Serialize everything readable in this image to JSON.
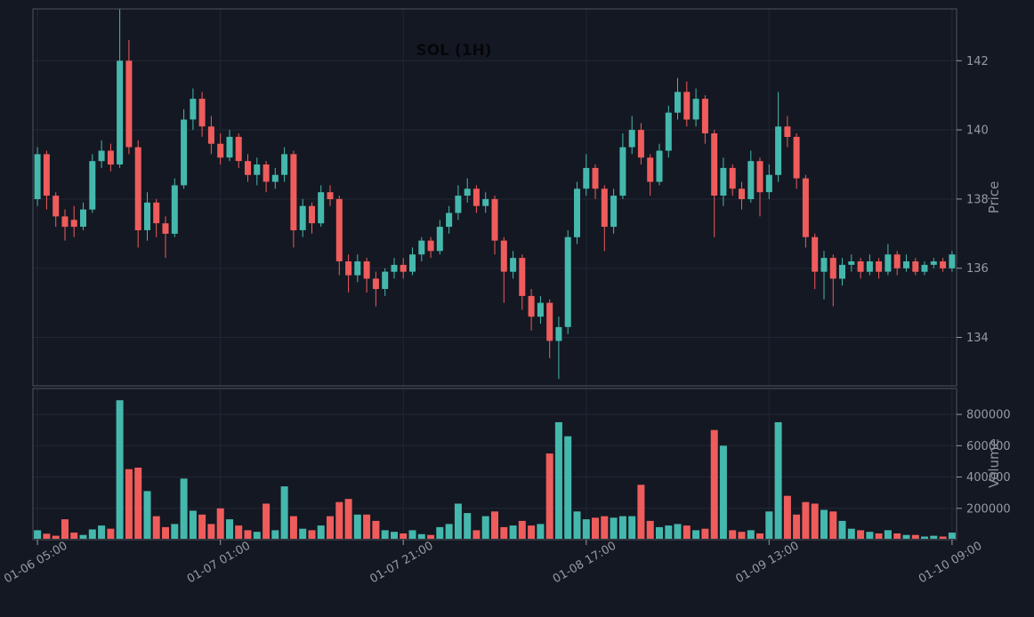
{
  "colors": {
    "background": "#141822",
    "up": "#45b8ad",
    "down": "#ef5c5c",
    "grid": "#232735",
    "panel_border": "#4d525c",
    "tick_text": "#969aa3",
    "axis_label_text": "#8d929c",
    "title_text": "#06070a"
  },
  "chart_data": {
    "type": "candlestick",
    "title": "SOL (1H)",
    "legend_position": "none",
    "grid": true,
    "price_axis": {
      "label": "Price",
      "ticks": [
        134,
        136,
        138,
        140,
        142
      ],
      "range": [
        132.6,
        143.5
      ]
    },
    "volume_axis": {
      "label": "Volume",
      "ticks": [
        200000,
        400000,
        600000,
        800000
      ],
      "range": [
        0,
        965000
      ]
    },
    "x_axis": {
      "tick_indices": [
        0,
        20,
        40,
        60,
        80,
        100
      ],
      "tick_labels": [
        "01-06 05:00",
        "01-07 01:00",
        "01-07 21:00",
        "01-08 17:00",
        "01-09 13:00",
        "01-10 09:00"
      ]
    },
    "candles_format": [
      "open",
      "high",
      "low",
      "close",
      "volume"
    ],
    "candles": [
      [
        138.0,
        139.5,
        137.8,
        139.3,
        60000
      ],
      [
        139.3,
        139.4,
        137.7,
        138.1,
        38000
      ],
      [
        138.1,
        138.2,
        137.2,
        137.5,
        25000
      ],
      [
        137.5,
        137.7,
        136.8,
        137.2,
        130000
      ],
      [
        137.4,
        137.8,
        136.9,
        137.2,
        45000
      ],
      [
        137.2,
        137.9,
        137.1,
        137.7,
        30000
      ],
      [
        137.7,
        139.3,
        137.6,
        139.1,
        65000
      ],
      [
        139.1,
        139.7,
        138.9,
        139.4,
        90000
      ],
      [
        139.4,
        139.6,
        138.8,
        139.0,
        70000
      ],
      [
        139.0,
        143.5,
        138.9,
        142.0,
        890000
      ],
      [
        142.0,
        142.6,
        139.3,
        139.5,
        450000
      ],
      [
        139.5,
        139.7,
        136.6,
        137.1,
        460000
      ],
      [
        137.1,
        138.2,
        136.8,
        137.9,
        310000
      ],
      [
        137.9,
        138.0,
        136.9,
        137.3,
        150000
      ],
      [
        137.3,
        137.5,
        136.3,
        137.0,
        80000
      ],
      [
        137.0,
        138.6,
        136.9,
        138.4,
        100000
      ],
      [
        138.4,
        140.6,
        138.3,
        140.3,
        390000
      ],
      [
        140.3,
        141.2,
        140.0,
        140.9,
        185000
      ],
      [
        140.9,
        141.1,
        139.8,
        140.1,
        160000
      ],
      [
        140.1,
        140.4,
        139.3,
        139.6,
        100000
      ],
      [
        139.6,
        139.9,
        139.0,
        139.2,
        200000
      ],
      [
        139.2,
        140.0,
        139.1,
        139.8,
        130000
      ],
      [
        139.8,
        139.9,
        138.9,
        139.1,
        90000
      ],
      [
        139.1,
        139.3,
        138.5,
        138.7,
        60000
      ],
      [
        138.7,
        139.2,
        138.4,
        139.0,
        50000
      ],
      [
        139.0,
        139.1,
        138.2,
        138.5,
        230000
      ],
      [
        138.5,
        138.9,
        138.3,
        138.7,
        60000
      ],
      [
        138.7,
        139.5,
        138.5,
        139.3,
        340000
      ],
      [
        139.3,
        139.4,
        136.6,
        137.1,
        150000
      ],
      [
        137.1,
        138.0,
        136.9,
        137.8,
        70000
      ],
      [
        137.8,
        137.9,
        137.0,
        137.3,
        60000
      ],
      [
        137.3,
        138.4,
        137.2,
        138.2,
        90000
      ],
      [
        138.2,
        138.4,
        137.8,
        138.0,
        150000
      ],
      [
        138.0,
        138.1,
        135.8,
        136.2,
        240000
      ],
      [
        136.2,
        136.4,
        135.3,
        135.8,
        260000
      ],
      [
        135.8,
        136.4,
        135.6,
        136.2,
        160000
      ],
      [
        136.2,
        136.3,
        135.3,
        135.7,
        160000
      ],
      [
        135.7,
        135.9,
        134.9,
        135.4,
        120000
      ],
      [
        135.4,
        136.0,
        135.2,
        135.9,
        60000
      ],
      [
        135.9,
        136.3,
        135.7,
        136.1,
        50000
      ],
      [
        136.1,
        136.3,
        135.7,
        135.9,
        40000
      ],
      [
        135.9,
        136.6,
        135.8,
        136.4,
        60000
      ],
      [
        136.4,
        136.9,
        136.2,
        136.8,
        35000
      ],
      [
        136.8,
        136.9,
        136.3,
        136.5,
        30000
      ],
      [
        136.5,
        137.4,
        136.4,
        137.2,
        80000
      ],
      [
        137.2,
        137.8,
        137.0,
        137.6,
        100000
      ],
      [
        137.6,
        138.4,
        137.4,
        138.1,
        230000
      ],
      [
        138.1,
        138.6,
        137.9,
        138.3,
        170000
      ],
      [
        138.3,
        138.4,
        137.6,
        137.8,
        60000
      ],
      [
        137.8,
        138.2,
        137.6,
        138.0,
        150000
      ],
      [
        138.0,
        138.1,
        136.4,
        136.8,
        180000
      ],
      [
        136.8,
        136.9,
        135.0,
        135.9,
        80000
      ],
      [
        135.9,
        136.5,
        135.7,
        136.3,
        90000
      ],
      [
        136.3,
        136.4,
        134.8,
        135.2,
        120000
      ],
      [
        135.2,
        135.4,
        134.2,
        134.6,
        90000
      ],
      [
        134.6,
        135.2,
        134.4,
        135.0,
        100000
      ],
      [
        135.0,
        135.1,
        133.4,
        133.9,
        550000
      ],
      [
        133.9,
        134.6,
        132.8,
        134.3,
        750000
      ],
      [
        134.3,
        137.1,
        134.1,
        136.9,
        660000
      ],
      [
        136.9,
        138.5,
        136.7,
        138.3,
        180000
      ],
      [
        138.3,
        139.3,
        138.1,
        138.9,
        130000
      ],
      [
        138.9,
        139.0,
        138.0,
        138.3,
        140000
      ],
      [
        138.3,
        138.4,
        136.5,
        137.2,
        150000
      ],
      [
        137.2,
        138.3,
        137.0,
        138.1,
        140000
      ],
      [
        138.1,
        139.9,
        138.0,
        139.5,
        150000
      ],
      [
        139.5,
        140.4,
        139.3,
        140.0,
        150000
      ],
      [
        140.0,
        140.2,
        139.0,
        139.2,
        350000
      ],
      [
        139.2,
        139.3,
        138.1,
        138.5,
        120000
      ],
      [
        138.5,
        139.6,
        138.4,
        139.4,
        80000
      ],
      [
        139.4,
        140.7,
        139.2,
        140.5,
        90000
      ],
      [
        140.5,
        141.5,
        140.3,
        141.1,
        100000
      ],
      [
        141.1,
        141.4,
        140.1,
        140.3,
        90000
      ],
      [
        140.3,
        141.2,
        140.1,
        140.9,
        60000
      ],
      [
        140.9,
        141.0,
        139.6,
        139.9,
        70000
      ],
      [
        139.9,
        140.0,
        136.9,
        138.1,
        700000
      ],
      [
        138.1,
        139.2,
        137.8,
        138.9,
        600000
      ],
      [
        138.9,
        139.0,
        138.1,
        138.3,
        60000
      ],
      [
        138.3,
        138.5,
        137.7,
        138.0,
        50000
      ],
      [
        138.0,
        139.4,
        137.9,
        139.1,
        60000
      ],
      [
        139.1,
        139.2,
        137.5,
        138.2,
        40000
      ],
      [
        138.2,
        139.0,
        138.0,
        138.7,
        180000
      ],
      [
        138.7,
        141.1,
        138.5,
        140.1,
        750000
      ],
      [
        140.1,
        140.4,
        139.5,
        139.8,
        280000
      ],
      [
        139.8,
        139.9,
        138.3,
        138.6,
        160000
      ],
      [
        138.6,
        138.7,
        136.6,
        136.9,
        240000
      ],
      [
        136.9,
        137.0,
        135.4,
        135.9,
        230000
      ],
      [
        135.9,
        136.5,
        135.1,
        136.3,
        190000
      ],
      [
        136.3,
        136.4,
        134.9,
        135.7,
        180000
      ],
      [
        135.7,
        136.3,
        135.5,
        136.1,
        120000
      ],
      [
        136.1,
        136.4,
        135.9,
        136.2,
        70000
      ],
      [
        136.2,
        136.3,
        135.7,
        135.9,
        60000
      ],
      [
        135.9,
        136.4,
        135.8,
        136.2,
        50000
      ],
      [
        136.2,
        136.3,
        135.7,
        135.9,
        40000
      ],
      [
        135.9,
        136.7,
        135.8,
        136.4,
        60000
      ],
      [
        136.4,
        136.5,
        135.8,
        136.0,
        40000
      ],
      [
        136.0,
        136.4,
        135.9,
        136.2,
        30000
      ],
      [
        136.2,
        136.3,
        135.8,
        135.9,
        30000
      ],
      [
        135.9,
        136.2,
        135.8,
        136.1,
        20000
      ],
      [
        136.1,
        136.3,
        136.0,
        136.2,
        25000
      ],
      [
        136.2,
        136.3,
        135.9,
        136.0,
        20000
      ],
      [
        136.0,
        136.5,
        135.9,
        136.4,
        45000
      ]
    ]
  }
}
